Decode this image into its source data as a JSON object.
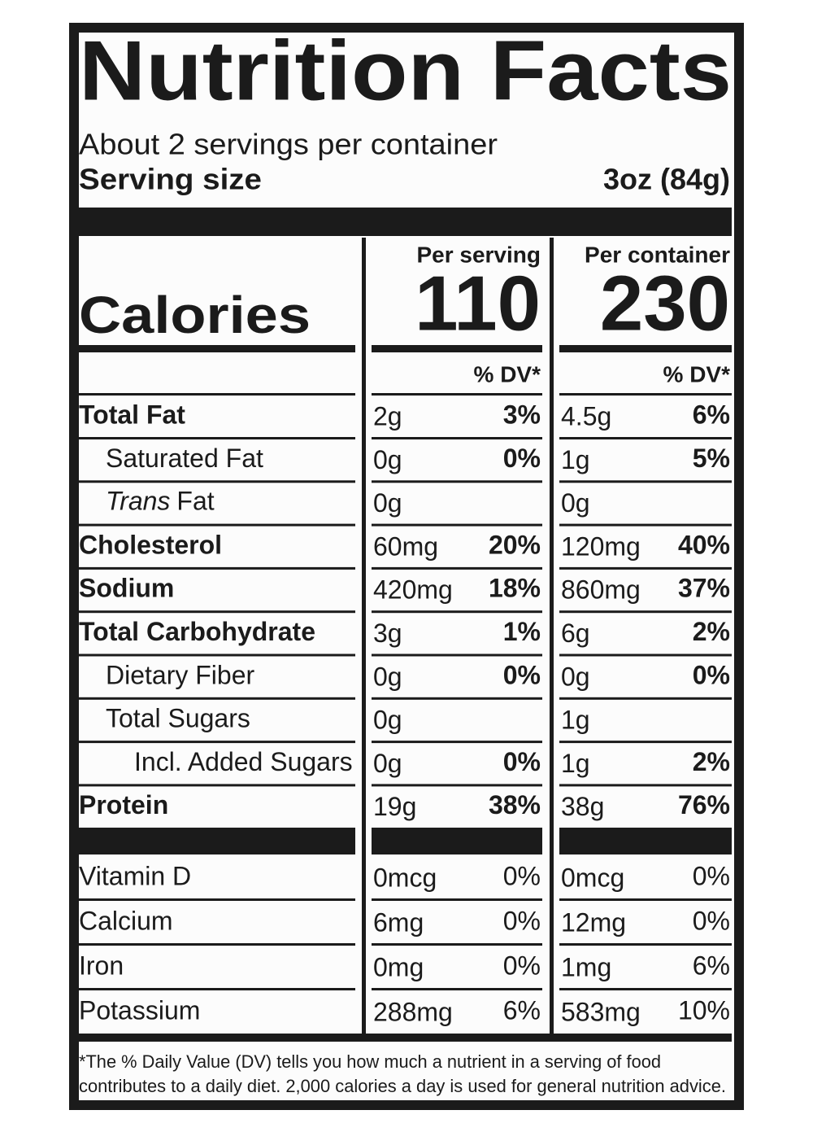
{
  "title": "Nutrition Facts",
  "servings": "About 2 servings per container",
  "serving_size": {
    "label": "Serving size",
    "value": "3oz (84g)"
  },
  "columns": [
    "Per serving",
    "Per container"
  ],
  "calories": {
    "label": "Calories",
    "values": [
      "110",
      "230"
    ]
  },
  "dv_headers": [
    "% DV*",
    "% DV*"
  ],
  "nutrients": [
    {
      "name": "Total Fat",
      "serving": [
        "2g",
        "3%"
      ],
      "container": [
        "4.5g",
        "6%"
      ]
    },
    {
      "name": "Saturated Fat",
      "serving": [
        "0g",
        "0%"
      ],
      "container": [
        "1g",
        "5%"
      ]
    },
    {
      "name_italic": "Trans",
      "name": "Fat",
      "serving": [
        "0g"
      ],
      "container": [
        "0g"
      ]
    },
    {
      "name": "Cholesterol",
      "serving": [
        "60mg",
        "20%"
      ],
      "container": [
        "120mg",
        "40%"
      ]
    },
    {
      "name": "Sodium",
      "serving": [
        "420mg",
        "18%"
      ],
      "container": [
        "860mg",
        "37%"
      ]
    },
    {
      "name": "Total Carbohydrate",
      "serving": [
        "3g",
        "1%"
      ],
      "container": [
        "6g",
        "2%"
      ]
    },
    {
      "name": "Dietary Fiber",
      "serving": [
        "0g",
        "0%"
      ],
      "container": [
        "0g",
        "0%"
      ]
    },
    {
      "name": "Total Sugars",
      "serving": [
        "0g"
      ],
      "container": [
        "1g"
      ]
    },
    {
      "name": "Incl. Added Sugars",
      "serving": [
        "0g",
        "0%"
      ],
      "container": [
        "1g",
        "2%"
      ]
    },
    {
      "name": "Protein",
      "serving": [
        "19g",
        "38%"
      ],
      "container": [
        "38g",
        "76%"
      ]
    }
  ],
  "minerals": [
    {
      "name": "Vitamin D",
      "serving": [
        "0mcg",
        "0%"
      ],
      "container": [
        "0mcg",
        "0%"
      ]
    },
    {
      "name": "Calcium",
      "serving": [
        "6mg",
        "0%"
      ],
      "container": [
        "12mg",
        "0%"
      ]
    },
    {
      "name": "Iron",
      "serving": [
        "0mg",
        "0%"
      ],
      "container": [
        "1mg",
        "6%"
      ]
    },
    {
      "name": "Potassium",
      "serving": [
        "288mg",
        "6%"
      ],
      "container": [
        "583mg",
        "10%"
      ]
    }
  ],
  "footnote": [
    "*The % Daily Value (DV) tells you how much a nutrient in a serving of food",
    "contributes to a daily diet. 2,000 calories a day is used for general nutrition advice."
  ]
}
